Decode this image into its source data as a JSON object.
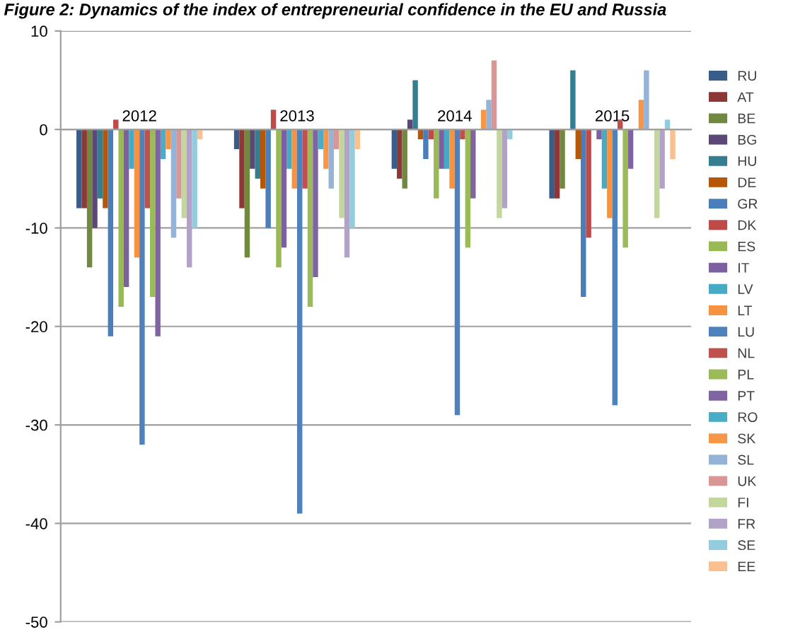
{
  "chart_data": {
    "type": "bar",
    "title": "Figure 2: Dynamics of the index of entrepreneurial confidence in the EU and Russia",
    "categories": [
      "2012",
      "2013",
      "2014",
      "2015"
    ],
    "ylim": [
      -50,
      10
    ],
    "yticks": [
      -50,
      -40,
      -30,
      -20,
      -10,
      0,
      10
    ],
    "grid": "y",
    "legend": "right",
    "series": [
      {
        "name": "RU",
        "color": "#385d8a",
        "values": [
          -8,
          -2,
          -4,
          -7
        ]
      },
      {
        "name": "AT",
        "color": "#8c3836",
        "values": [
          -8,
          -8,
          -5,
          -7
        ]
      },
      {
        "name": "BE",
        "color": "#71893f",
        "values": [
          -14,
          -13,
          -6,
          -6
        ]
      },
      {
        "name": "BG",
        "color": "#5c4776",
        "values": [
          -10,
          -4,
          1,
          0
        ]
      },
      {
        "name": "HU",
        "color": "#357d91",
        "values": [
          -7,
          -5,
          5,
          6
        ]
      },
      {
        "name": "DE",
        "color": "#b65708",
        "values": [
          -8,
          -6,
          -1,
          -3
        ]
      },
      {
        "name": "GR",
        "color": "#4a7ebb",
        "values": [
          -21,
          -10,
          -3,
          -17
        ]
      },
      {
        "name": "DK",
        "color": "#be4b48",
        "values": [
          1,
          2,
          -1,
          -11
        ]
      },
      {
        "name": "ES",
        "color": "#98b954",
        "values": [
          -18,
          -14,
          -7,
          0
        ]
      },
      {
        "name": "IT",
        "color": "#7d60a0",
        "values": [
          -16,
          -12,
          -4,
          -1
        ]
      },
      {
        "name": "LV",
        "color": "#46aac5",
        "values": [
          -4,
          -4,
          -4,
          -6
        ]
      },
      {
        "name": "LT",
        "color": "#f69240",
        "values": [
          -13,
          -6,
          -6,
          -9
        ]
      },
      {
        "name": "LU",
        "color": "#4f81bd",
        "values": [
          -32,
          -39,
          -29,
          -28
        ]
      },
      {
        "name": "NL",
        "color": "#c0504d",
        "values": [
          -8,
          -6,
          -1,
          1
        ]
      },
      {
        "name": "PL",
        "color": "#9bbb59",
        "values": [
          -17,
          -18,
          -12,
          -12
        ]
      },
      {
        "name": "PT",
        "color": "#8064a2",
        "values": [
          -21,
          -15,
          -7,
          -4
        ]
      },
      {
        "name": "RO",
        "color": "#4bacc6",
        "values": [
          -3,
          -2,
          0,
          0
        ]
      },
      {
        "name": "SK",
        "color": "#f79646",
        "values": [
          -2,
          -4,
          2,
          3
        ]
      },
      {
        "name": "SL",
        "color": "#95b3d7",
        "values": [
          -11,
          -6,
          3,
          6
        ]
      },
      {
        "name": "UK",
        "color": "#d99694",
        "values": [
          -7,
          -2,
          7,
          0
        ]
      },
      {
        "name": "FI",
        "color": "#c3d69b",
        "values": [
          -9,
          -9,
          -9,
          -9
        ]
      },
      {
        "name": "FR",
        "color": "#b3a2c7",
        "values": [
          -14,
          -13,
          -8,
          -6
        ]
      },
      {
        "name": "SE",
        "color": "#93cddd",
        "values": [
          -10,
          -10,
          -1,
          1
        ]
      },
      {
        "name": "EE",
        "color": "#fac090",
        "values": [
          -1,
          -2,
          0,
          -3
        ]
      }
    ]
  }
}
